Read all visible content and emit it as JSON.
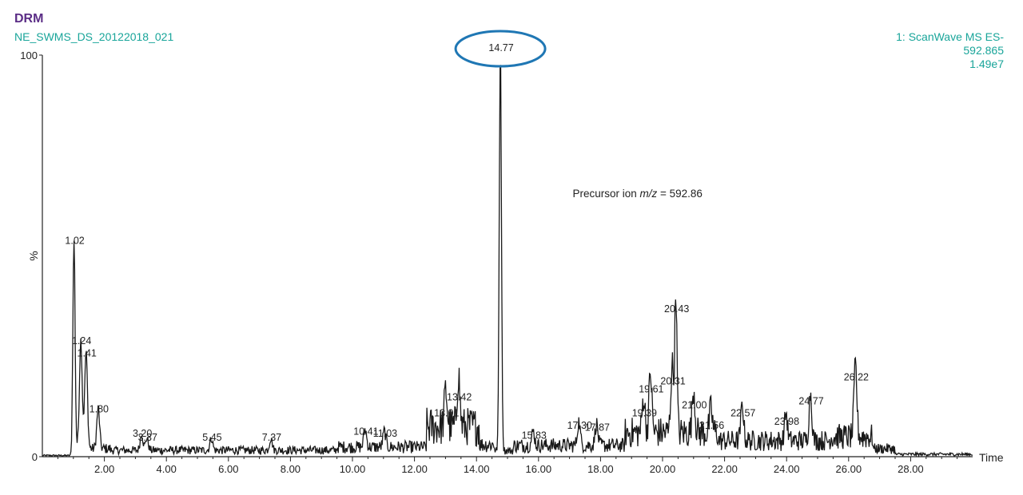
{
  "header": {
    "title": "DRM",
    "subtitle": "NE_SWMS_DS_20122018_021",
    "right_line1": "1: ScanWave MS ES-",
    "right_line2": "592.865",
    "right_line3": "1.49e7"
  },
  "colors": {
    "title": "#5b2d86",
    "header_text": "#19a59a",
    "highlight_ellipse": "#1f77b4",
    "trace": "#1a1a1a"
  },
  "chart_data": {
    "type": "line",
    "xlabel": "Time",
    "ylabel": "%",
    "xlim": [
      0,
      30
    ],
    "ylim": [
      0,
      100
    ],
    "x_ticks": [
      2,
      4,
      6,
      8,
      10,
      12,
      14,
      16,
      18,
      20,
      22,
      24,
      26,
      28
    ],
    "x_tick_labels": [
      "2.00",
      "4.00",
      "6.00",
      "8.00",
      "10.00",
      "12.00",
      "14.00",
      "16.00",
      "18.00",
      "20.00",
      "22.00",
      "24.00",
      "26.00",
      "28.00"
    ],
    "y_tick_labels": [
      {
        "y": 100,
        "label": "100"
      },
      {
        "y": 0,
        "label": "0"
      }
    ],
    "annotation": {
      "prefix": "Precursor ion ",
      "italic": "m/z",
      "suffix": " = 592.86"
    },
    "highlighted_peak": "14.77",
    "peaks": [
      {
        "x": 1.02,
        "y": 52,
        "label": "1.02"
      },
      {
        "x": 1.24,
        "y": 27,
        "label": "1.24"
      },
      {
        "x": 1.41,
        "y": 24,
        "label": "1.41"
      },
      {
        "x": 1.8,
        "y": 10,
        "label": "1.80"
      },
      {
        "x": 3.2,
        "y": 4,
        "label": "3.20"
      },
      {
        "x": 3.37,
        "y": 3,
        "label": "3.37"
      },
      {
        "x": 5.45,
        "y": 3,
        "label": "5.45"
      },
      {
        "x": 7.37,
        "y": 3,
        "label": "7.37"
      },
      {
        "x": 10.41,
        "y": 4.5,
        "label": "10.41"
      },
      {
        "x": 11.03,
        "y": 4,
        "label": "11.03"
      },
      {
        "x": 13.01,
        "y": 9,
        "label": "13.01"
      },
      {
        "x": 13.42,
        "y": 13,
        "label": "13.42"
      },
      {
        "x": 14.77,
        "y": 100,
        "label": "14.77"
      },
      {
        "x": 15.83,
        "y": 3.5,
        "label": "15.83"
      },
      {
        "x": 17.3,
        "y": 6,
        "label": "17.30"
      },
      {
        "x": 17.87,
        "y": 5.5,
        "label": "17.87"
      },
      {
        "x": 19.39,
        "y": 9,
        "label": "19.39"
      },
      {
        "x": 19.61,
        "y": 15,
        "label": "19.61"
      },
      {
        "x": 20.31,
        "y": 17,
        "label": "20.31"
      },
      {
        "x": 20.43,
        "y": 35,
        "label": "20.43"
      },
      {
        "x": 21.0,
        "y": 11,
        "label": "21.00"
      },
      {
        "x": 21.56,
        "y": 6,
        "label": "21.56"
      },
      {
        "x": 22.57,
        "y": 9,
        "label": "22.57"
      },
      {
        "x": 23.98,
        "y": 7,
        "label": "23.98"
      },
      {
        "x": 24.77,
        "y": 12,
        "label": "24.77"
      },
      {
        "x": 26.22,
        "y": 18,
        "label": "26.22"
      }
    ]
  }
}
